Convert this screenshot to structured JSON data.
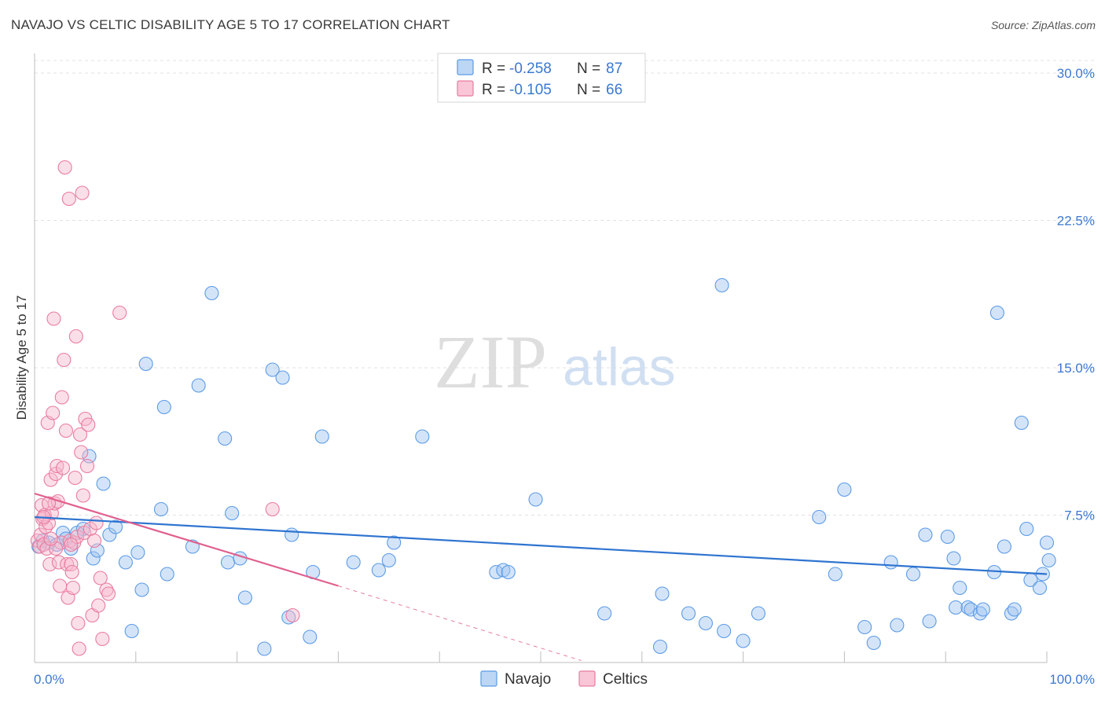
{
  "title": "NAVAJO VS CELTIC DISABILITY AGE 5 TO 17 CORRELATION CHART",
  "source": "Source: ZipAtlas.com",
  "watermark": {
    "zip": "ZIP",
    "atlas": "atlas"
  },
  "legend_top": [
    {
      "r_label": "R =",
      "r_value": "-0.258",
      "n_label": "N =",
      "n_value": "87",
      "color": "#5b9be6",
      "fill": "#b9d3f5"
    },
    {
      "r_label": "R =",
      "r_value": "-0.105",
      "n_label": "N =",
      "n_value": "66",
      "color": "#e87ca0",
      "fill": "#f7c4d4"
    }
  ],
  "colors": {
    "navajo": "#5b9be6",
    "navajo_fill": "rgba(160,196,240,0.45)",
    "navajo_line": "#2e74d0",
    "celtics": "#e87ca0",
    "celtics_fill": "rgba(246,184,204,0.45)",
    "celtics_line": "#e0608e",
    "axis_text": "#3b78d0",
    "grid": "#e2e2e2"
  },
  "chart_data": {
    "type": "scatter",
    "xlabel": "",
    "ylabel": "Disability Age 5 to 17",
    "x_tick_labels": [
      "0.0%",
      "100.0%"
    ],
    "y_tick_labels": [
      "7.5%",
      "15.0%",
      "22.5%",
      "30.0%"
    ],
    "y_ticks": [
      7.5,
      15.0,
      22.5,
      30.0
    ],
    "xlim": [
      0,
      100
    ],
    "ylim": [
      0,
      31
    ],
    "grid": true,
    "legend_position": "bottom-center",
    "series": [
      {
        "name": "Navajo",
        "trend": {
          "x0": 0,
          "y0": 7.4,
          "x1": 100,
          "y1": 4.5
        },
        "points": [
          [
            0.4,
            5.9
          ],
          [
            0.8,
            6.2
          ],
          [
            1.4,
            6.1
          ],
          [
            2.2,
            6.0
          ],
          [
            2.8,
            6.6
          ],
          [
            3.1,
            6.3
          ],
          [
            3.6,
            5.8
          ],
          [
            4.2,
            6.6
          ],
          [
            4.8,
            6.8
          ],
          [
            5.4,
            10.5
          ],
          [
            5.8,
            5.3
          ],
          [
            6.2,
            5.7
          ],
          [
            6.8,
            9.1
          ],
          [
            7.4,
            6.5
          ],
          [
            8.0,
            6.9
          ],
          [
            9.0,
            5.1
          ],
          [
            9.6,
            1.6
          ],
          [
            10.2,
            5.6
          ],
          [
            10.6,
            3.7
          ],
          [
            11.0,
            15.2
          ],
          [
            12.8,
            13.0
          ],
          [
            13.1,
            4.5
          ],
          [
            12.5,
            7.8
          ],
          [
            15.6,
            5.9
          ],
          [
            16.2,
            14.1
          ],
          [
            17.5,
            18.8
          ],
          [
            18.8,
            11.4
          ],
          [
            19.1,
            5.1
          ],
          [
            19.5,
            7.6
          ],
          [
            20.3,
            5.3
          ],
          [
            20.8,
            3.3
          ],
          [
            22.7,
            0.7
          ],
          [
            23.5,
            14.9
          ],
          [
            24.5,
            14.5
          ],
          [
            25.1,
            2.3
          ],
          [
            25.4,
            6.5
          ],
          [
            27.2,
            1.3
          ],
          [
            27.5,
            4.6
          ],
          [
            28.4,
            11.5
          ],
          [
            31.5,
            5.1
          ],
          [
            34.0,
            4.7
          ],
          [
            35.0,
            5.2
          ],
          [
            35.5,
            6.1
          ],
          [
            38.3,
            11.5
          ],
          [
            45.6,
            4.6
          ],
          [
            46.3,
            4.7
          ],
          [
            46.8,
            4.6
          ],
          [
            49.5,
            8.3
          ],
          [
            56.3,
            2.5
          ],
          [
            61.8,
            0.8
          ],
          [
            62.0,
            3.5
          ],
          [
            64.6,
            2.5
          ],
          [
            66.3,
            2.0
          ],
          [
            67.9,
            19.2
          ],
          [
            68.1,
            1.6
          ],
          [
            70.0,
            1.1
          ],
          [
            71.5,
            2.5
          ],
          [
            77.5,
            7.4
          ],
          [
            79.1,
            4.5
          ],
          [
            80.0,
            8.8
          ],
          [
            82.0,
            1.8
          ],
          [
            82.9,
            1.0
          ],
          [
            84.6,
            5.1
          ],
          [
            85.2,
            1.9
          ],
          [
            86.8,
            4.5
          ],
          [
            88.0,
            6.5
          ],
          [
            88.4,
            2.1
          ],
          [
            90.2,
            6.4
          ],
          [
            90.8,
            5.3
          ],
          [
            91.4,
            3.8
          ],
          [
            91.0,
            2.8
          ],
          [
            92.2,
            2.8
          ],
          [
            92.5,
            2.7
          ],
          [
            93.4,
            2.5
          ],
          [
            93.7,
            2.7
          ],
          [
            94.8,
            4.6
          ],
          [
            95.1,
            17.8
          ],
          [
            95.8,
            5.9
          ],
          [
            96.5,
            2.5
          ],
          [
            96.8,
            2.7
          ],
          [
            97.5,
            12.2
          ],
          [
            98.0,
            6.8
          ],
          [
            98.4,
            4.2
          ],
          [
            99.3,
            3.8
          ],
          [
            99.6,
            4.5
          ],
          [
            100.0,
            6.1
          ],
          [
            100.2,
            5.2
          ]
        ]
      },
      {
        "name": "Celtics",
        "trend": {
          "x0": 0,
          "y0": 8.6,
          "x1": 30,
          "y1": 3.9,
          "dash_x1": 54,
          "dash_y1": 0.1
        },
        "points": [
          [
            0.3,
            6.2
          ],
          [
            0.5,
            5.9
          ],
          [
            0.6,
            6.5
          ],
          [
            0.7,
            8.0
          ],
          [
            0.8,
            7.3
          ],
          [
            0.9,
            6.0
          ],
          [
            1.0,
            7.5
          ],
          [
            1.1,
            6.9
          ],
          [
            1.2,
            5.8
          ],
          [
            1.3,
            12.2
          ],
          [
            1.4,
            7.1
          ],
          [
            1.5,
            5.0
          ],
          [
            1.6,
            9.3
          ],
          [
            1.7,
            7.6
          ],
          [
            1.8,
            12.7
          ],
          [
            1.9,
            17.5
          ],
          [
            2.0,
            8.1
          ],
          [
            2.1,
            9.6
          ],
          [
            2.2,
            10.0
          ],
          [
            2.3,
            8.2
          ],
          [
            2.4,
            5.1
          ],
          [
            2.5,
            3.9
          ],
          [
            2.6,
            6.1
          ],
          [
            2.7,
            13.5
          ],
          [
            2.8,
            9.9
          ],
          [
            2.9,
            15.4
          ],
          [
            3.0,
            25.2
          ],
          [
            3.1,
            11.8
          ],
          [
            3.2,
            5.0
          ],
          [
            3.3,
            3.3
          ],
          [
            3.4,
            23.6
          ],
          [
            3.5,
            6.2
          ],
          [
            3.6,
            5.0
          ],
          [
            3.7,
            4.6
          ],
          [
            3.8,
            3.8
          ],
          [
            3.9,
            6.1
          ],
          [
            4.0,
            9.4
          ],
          [
            4.1,
            16.6
          ],
          [
            4.2,
            6.4
          ],
          [
            4.3,
            2.0
          ],
          [
            4.4,
            0.7
          ],
          [
            4.5,
            11.6
          ],
          [
            4.6,
            10.7
          ],
          [
            4.7,
            23.9
          ],
          [
            4.8,
            8.5
          ],
          [
            4.9,
            6.6
          ],
          [
            5.0,
            12.4
          ],
          [
            5.2,
            10.0
          ],
          [
            5.3,
            12.1
          ],
          [
            5.5,
            6.8
          ],
          [
            5.7,
            2.4
          ],
          [
            5.9,
            6.2
          ],
          [
            6.1,
            7.1
          ],
          [
            6.3,
            2.9
          ],
          [
            6.5,
            4.3
          ],
          [
            6.7,
            1.2
          ],
          [
            7.1,
            3.7
          ],
          [
            7.3,
            3.5
          ],
          [
            8.4,
            17.8
          ],
          [
            23.5,
            7.8
          ],
          [
            25.5,
            2.4
          ],
          [
            3.6,
            6.0
          ],
          [
            2.1,
            5.8
          ],
          [
            1.6,
            6.3
          ],
          [
            0.9,
            7.4
          ],
          [
            1.4,
            8.1
          ]
        ]
      }
    ]
  }
}
